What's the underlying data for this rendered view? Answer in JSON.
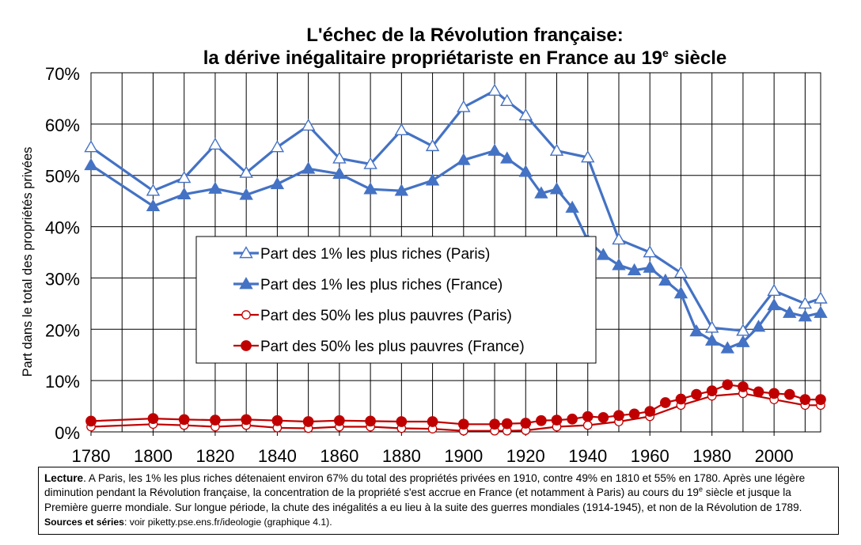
{
  "title": {
    "line1": "L'échec de la Révolution française:",
    "line2_pre": "la dérive inégalitaire propriétariste en France au 19",
    "line2_sup": "e",
    "line2_post": " siècle"
  },
  "note": {
    "lecture_label": "Lecture",
    "text_1": ". A Paris, les 1% les plus riches détenaient environ 67% du total des propriétés privées en 1910, contre 49% en 1810 et 55% en 1780. Après une légère diminution pendant la Révolution française, la concentration de la propriété s'est accrue en France (et notamment à Paris) au cours du 19",
    "text_sup": "e",
    "text_2": " siècle et jusque la Première guerre mondiale. Sur longue période, la chute des inégalités a eu lieu à la suite des guerres mondiales (1914-1945), et non de la Révolution de 1789.",
    "sources_label": "Sources et séries",
    "sources_text": ": voir piketty.pse.ens.fr/ideologie (graphique 4.1)."
  },
  "chart_data": {
    "type": "line",
    "ylabel": "Part dans le total des propriétés privées",
    "xlabel": "",
    "xlim": [
      1780,
      2015
    ],
    "ylim": [
      0,
      0.7
    ],
    "x_ticks": [
      1780,
      1800,
      1820,
      1840,
      1860,
      1880,
      1900,
      1920,
      1940,
      1960,
      1980,
      2000
    ],
    "x_tick_labels": [
      "1780",
      "1800",
      "1820",
      "1840",
      "1860",
      "1880",
      "1900",
      "1920",
      "1940",
      "1960",
      "1980",
      "2000"
    ],
    "y_ticks": [
      0,
      0.1,
      0.2,
      0.3,
      0.4,
      0.5,
      0.6,
      0.7
    ],
    "y_tick_labels": [
      "0%",
      "10%",
      "20%",
      "30%",
      "40%",
      "50%",
      "60%",
      "70%"
    ],
    "grid": true,
    "legend_position": "center-left",
    "series": [
      {
        "name": "Part des 1% les plus riches (Paris)",
        "color": "#4472C4",
        "marker": "triangle-open",
        "x": [
          1780,
          1800,
          1810,
          1820,
          1830,
          1840,
          1850,
          1860,
          1870,
          1880,
          1890,
          1900,
          1910,
          1914,
          1920,
          1930,
          1940,
          1950,
          1960,
          1970,
          1980,
          1990,
          2000,
          2010,
          2015
        ],
        "y": [
          0.555,
          0.47,
          0.495,
          0.56,
          0.505,
          0.555,
          0.597,
          0.533,
          0.522,
          0.588,
          0.557,
          0.633,
          0.665,
          0.645,
          0.617,
          0.548,
          0.535,
          0.375,
          0.35,
          0.31,
          0.203,
          0.197,
          0.275,
          0.25,
          0.26
        ]
      },
      {
        "name": "Part des 1% les plus riches (France)",
        "color": "#4472C4",
        "marker": "triangle-filled",
        "x": [
          1780,
          1800,
          1810,
          1820,
          1830,
          1840,
          1850,
          1860,
          1870,
          1880,
          1890,
          1900,
          1910,
          1914,
          1920,
          1925,
          1930,
          1935,
          1940,
          1945,
          1950,
          1955,
          1960,
          1965,
          1970,
          1975,
          1980,
          1985,
          1990,
          1995,
          2000,
          2005,
          2010,
          2015
        ],
        "y": [
          0.52,
          0.44,
          0.463,
          0.474,
          0.462,
          0.483,
          0.513,
          0.503,
          0.473,
          0.47,
          0.49,
          0.53,
          0.548,
          0.533,
          0.507,
          0.465,
          0.473,
          0.437,
          0.373,
          0.345,
          0.325,
          0.315,
          0.32,
          0.295,
          0.27,
          0.196,
          0.178,
          0.163,
          0.175,
          0.205,
          0.247,
          0.232,
          0.225,
          0.232
        ]
      },
      {
        "name": "Part des 50% les plus pauvres (Paris)",
        "color": "#C00000",
        "marker": "circle-open",
        "x": [
          1780,
          1800,
          1810,
          1820,
          1830,
          1840,
          1850,
          1860,
          1870,
          1880,
          1890,
          1900,
          1910,
          1914,
          1920,
          1930,
          1940,
          1950,
          1960,
          1970,
          1980,
          1990,
          2000,
          2010,
          2015
        ],
        "y": [
          0.01,
          0.015,
          0.013,
          0.01,
          0.013,
          0.008,
          0.007,
          0.01,
          0.01,
          0.007,
          0.006,
          0.002,
          0.002,
          0.002,
          0.003,
          0.01,
          0.013,
          0.02,
          0.03,
          0.052,
          0.07,
          0.075,
          0.063,
          0.052,
          0.052
        ]
      },
      {
        "name": "Part des 50% les plus pauvres (France)",
        "color": "#C00000",
        "marker": "circle-filled",
        "x": [
          1780,
          1800,
          1810,
          1820,
          1830,
          1840,
          1850,
          1860,
          1870,
          1880,
          1890,
          1900,
          1910,
          1914,
          1920,
          1925,
          1930,
          1935,
          1940,
          1945,
          1950,
          1955,
          1960,
          1965,
          1970,
          1975,
          1980,
          1985,
          1990,
          1995,
          2000,
          2005,
          2010,
          2015
        ],
        "y": [
          0.021,
          0.026,
          0.024,
          0.023,
          0.024,
          0.022,
          0.02,
          0.022,
          0.021,
          0.02,
          0.02,
          0.015,
          0.015,
          0.016,
          0.017,
          0.022,
          0.023,
          0.025,
          0.03,
          0.028,
          0.032,
          0.035,
          0.04,
          0.057,
          0.064,
          0.073,
          0.08,
          0.092,
          0.088,
          0.078,
          0.075,
          0.073,
          0.063,
          0.063
        ]
      }
    ]
  }
}
